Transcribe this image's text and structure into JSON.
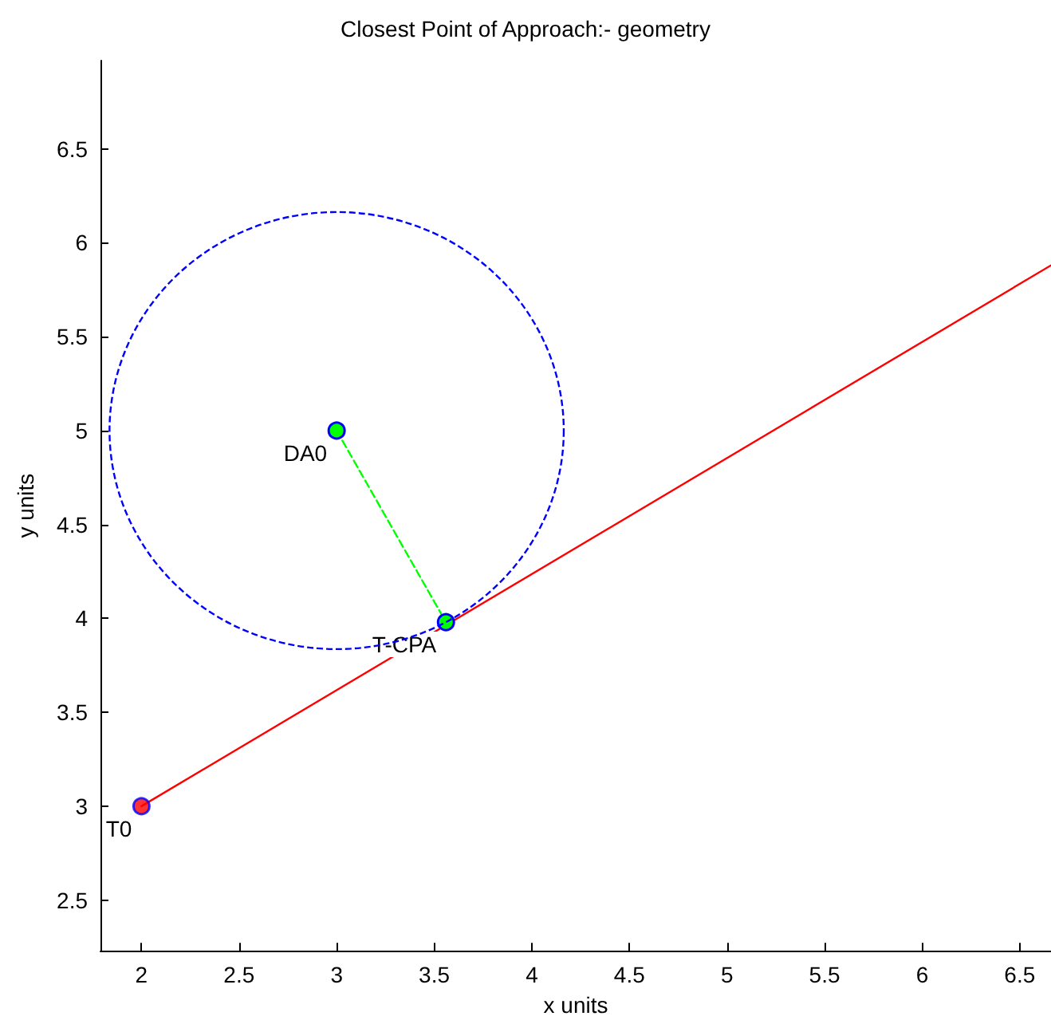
{
  "chart_data": {
    "type": "line",
    "title": "Closest Point of Approach:- geometry",
    "xlabel": "x units",
    "ylabel": "y units",
    "xlim": [
      1.79,
      6.66
    ],
    "ylim": [
      2.23,
      6.97
    ],
    "xticks": [
      2,
      2.5,
      3,
      3.5,
      4,
      4.5,
      5,
      5.5,
      6,
      6.5
    ],
    "yticks": [
      2.5,
      3,
      3.5,
      4,
      4.5,
      5,
      5.5,
      6,
      6.5
    ],
    "grid": false,
    "series": [
      {
        "color": "#ff0000",
        "line_style": "solid",
        "marker": "none",
        "x": [
          2,
          6.66
        ],
        "values": [
          3,
          5.88
        ]
      },
      {
        "color": "#00ff00",
        "line_style": "dashed",
        "marker": "circle",
        "x": [
          3,
          3.56
        ],
        "values": [
          5,
          3.98
        ]
      },
      {
        "type": "scatter",
        "marker": "circle",
        "color": "#ff0000",
        "x": [
          2
        ],
        "values": [
          3
        ]
      }
    ],
    "annotations": [
      {
        "text": "T0",
        "x": 2,
        "y": 3
      },
      {
        "text": "DA0",
        "x": 3,
        "y": 5
      },
      {
        "text": "T-CPA",
        "x": 3.56,
        "y": 3.98
      }
    ]
  }
}
